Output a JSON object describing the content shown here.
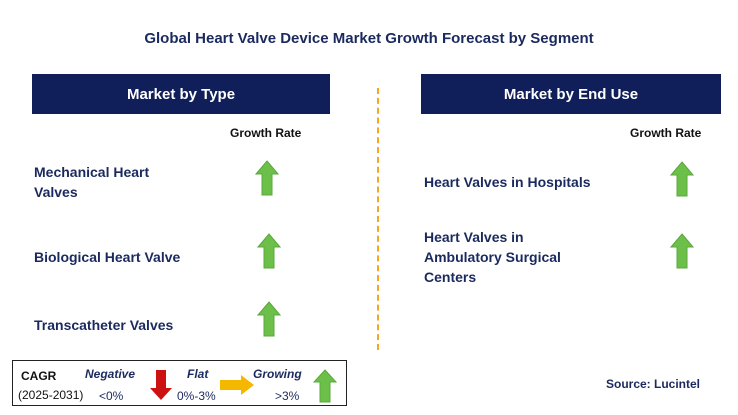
{
  "title": "Global Heart Valve Device Market Growth Forecast by Segment",
  "left_panel": {
    "header": "Market by Type",
    "growth_rate_label": "Growth Rate",
    "items": [
      {
        "line1": "Mechanical Heart",
        "line2": "Valves",
        "trend": "growing"
      },
      {
        "line1": "Biological Heart Valve",
        "trend": "growing"
      },
      {
        "line1": "Transcatheter Valves",
        "trend": "growing"
      }
    ]
  },
  "right_panel": {
    "header": "Market by End Use",
    "growth_rate_label": "Growth Rate",
    "items": [
      {
        "line1": "Heart Valves in Hospitals",
        "trend": "growing"
      },
      {
        "line1": "Heart Valves in",
        "line2": "Ambulatory Surgical",
        "line3": "Centers",
        "trend": "growing"
      }
    ]
  },
  "legend": {
    "cagr_label": "CAGR",
    "period": "(2025-2031)",
    "negative": {
      "label": "Negative",
      "range": "<0%",
      "color": "#cc1111"
    },
    "flat": {
      "label": "Flat",
      "range": "0%-3%",
      "color": "#f5b800"
    },
    "growing": {
      "label": "Growing",
      "range": ">3%",
      "color": "#6cc04a"
    }
  },
  "source": "Source: Lucintel"
}
